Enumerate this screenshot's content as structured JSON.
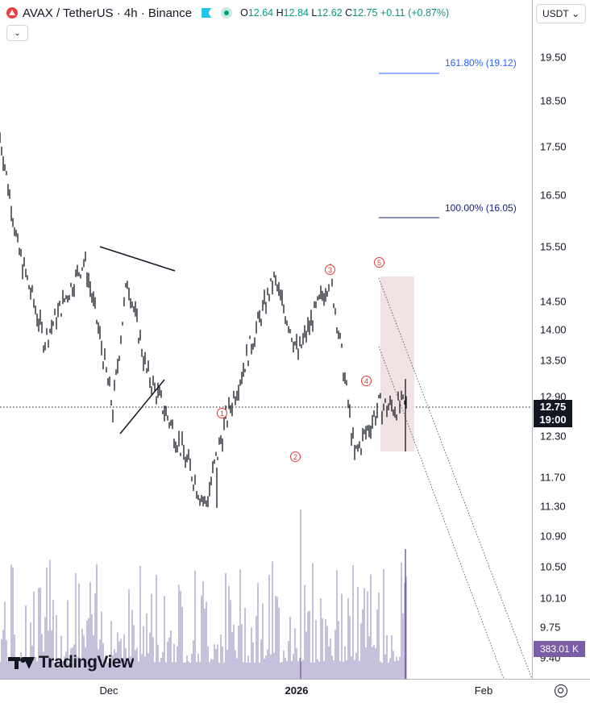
{
  "header": {
    "symbol": "AVAX / TetherUS · 4h · Binance",
    "open_label": "O",
    "open": "12.64",
    "high_label": "H",
    "high": "12.84",
    "low_label": "L",
    "low": "12.62",
    "close_label": "C",
    "close": "12.75",
    "change": "+0.11 (+0.87%)",
    "collapse_glyph": "⌄"
  },
  "currency_selector": {
    "value": "USDT",
    "glyph": "⌄"
  },
  "price_axis": {
    "ticks": [
      "19.50",
      "18.50",
      "17.50",
      "16.50",
      "15.50",
      "14.50",
      "14.00",
      "13.50",
      "12.90",
      "12.30",
      "11.70",
      "11.30",
      "10.90",
      "10.50",
      "10.10",
      "9.75",
      "9.40"
    ],
    "last_price": "12.75",
    "countdown": "19:00",
    "volume": "383.01 K"
  },
  "time_axis": {
    "labels": [
      {
        "text": "Dec",
        "bold": false
      },
      {
        "text": "2026",
        "bold": true
      },
      {
        "text": "Feb",
        "bold": false
      }
    ]
  },
  "fib_levels": [
    {
      "label": "161.80% (19.12)",
      "price": 19.12,
      "color": "#2962ff"
    },
    {
      "label": "100.00% (16.05)",
      "price": 16.05,
      "color": "#1a237e"
    }
  ],
  "waves": [
    "1",
    "2",
    "3",
    "4",
    "5"
  ],
  "brand": {
    "name": "TradingView"
  },
  "colors": {
    "fib_161": "#2962ff",
    "fib_100": "#1a237e",
    "wave": "#e53935",
    "volume": "#7b5ea7",
    "live": "#089981",
    "symbol_logo": "#e84142"
  },
  "chart_data": {
    "type": "candlestick",
    "symbol": "AVAXUSDT",
    "interval": "4h",
    "ylim": [
      9.4,
      19.5
    ],
    "key_points": [
      {
        "time": "Nov start",
        "price": 17.7
      },
      {
        "time": "Nov mid",
        "price": 15.5
      },
      {
        "time": "Nov late",
        "price": 13.8
      },
      {
        "time": "Nov end",
        "price": 15.25
      },
      {
        "time": "Dec early",
        "price": 12.7
      },
      {
        "time": "Dec mid",
        "price": 14.9
      },
      {
        "time": "Dec mid 2",
        "price": 13.3
      },
      {
        "time": "Dec late",
        "price": 11.3
      },
      {
        "time": "Dec end",
        "price": 12.3
      },
      {
        "time": "Jan early",
        "price": 14.9
      },
      {
        "time": "Jan mid",
        "price": 13.6
      },
      {
        "time": "Jan mid 2",
        "price": 14.95
      },
      {
        "time": "Jan late",
        "price": 12.0
      },
      {
        "time": "last",
        "price": 12.75
      }
    ]
  }
}
